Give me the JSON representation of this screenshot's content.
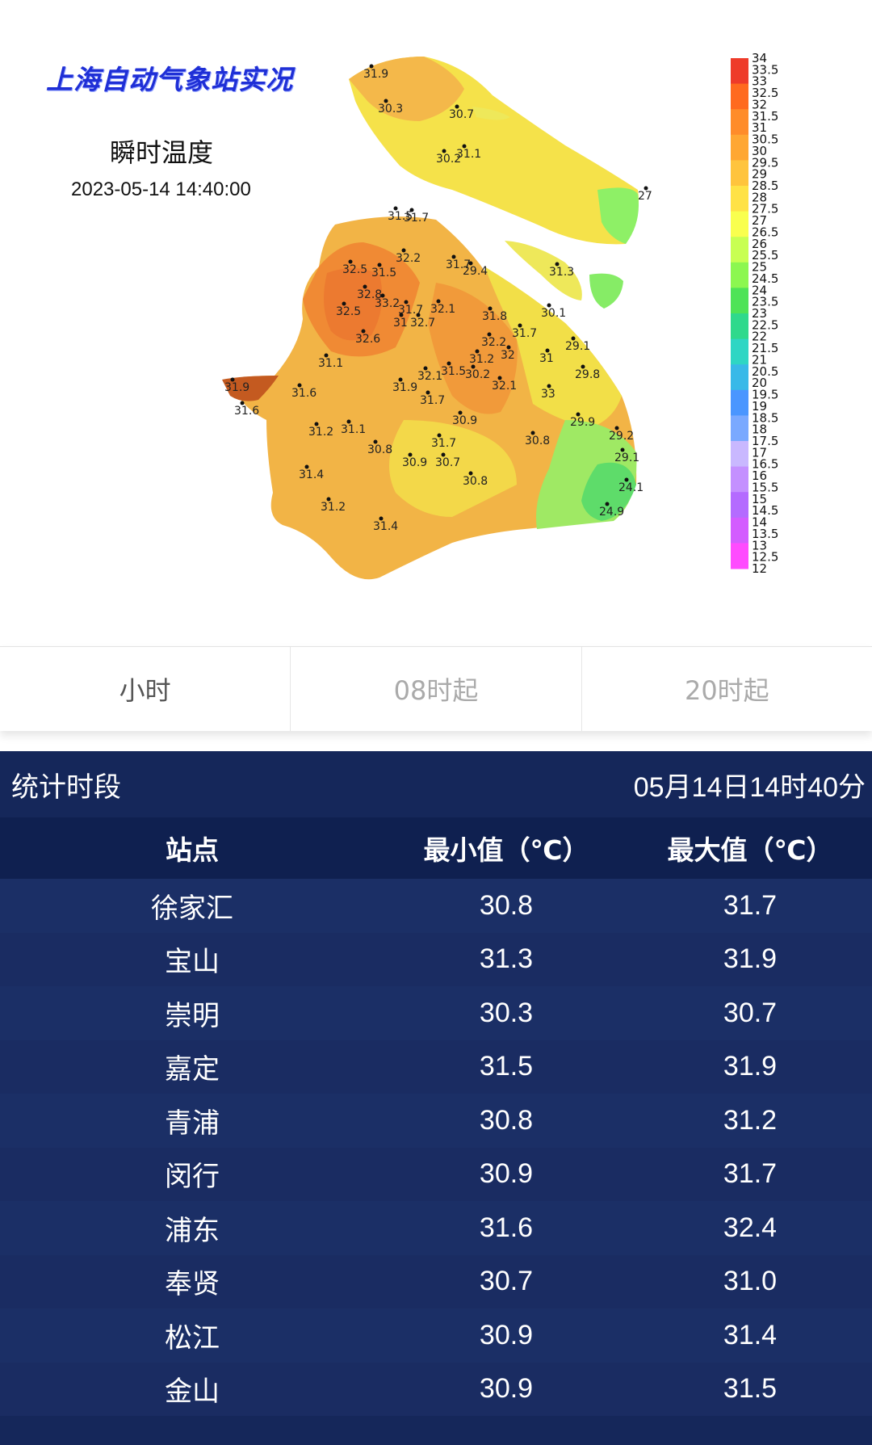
{
  "map": {
    "title": "上海自动气象站实况",
    "subtitle": "瞬时温度",
    "timestamp": "2023-05-14 14:40:00",
    "legend_labels": [
      "34",
      "33.5",
      "33",
      "32.5",
      "32",
      "31.5",
      "31",
      "30.5",
      "30",
      "29.5",
      "29",
      "28.5",
      "28",
      "27.5",
      "27",
      "26.5",
      "26",
      "25.5",
      "25",
      "24.5",
      "24",
      "23.5",
      "23",
      "22.5",
      "22",
      "21.5",
      "21",
      "20.5",
      "20",
      "19.5",
      "19",
      "18.5",
      "18",
      "17.5",
      "17",
      "16.5",
      "16",
      "15.5",
      "15",
      "14.5",
      "14",
      "13.5",
      "13",
      "12.5",
      "12"
    ],
    "legend_colors": [
      "#ee3b2a",
      "#ff6a1f",
      "#ff8c2a",
      "#ffa733",
      "#ffc43d",
      "#ffe246",
      "#f9ff4e",
      "#c8ff52",
      "#8cf750",
      "#4ee357",
      "#2fd98c",
      "#2ed6c4",
      "#38b9e8",
      "#4a96ff",
      "#7aa9ff",
      "#c9b8ff",
      "#c490ff",
      "#b46bff",
      "#d35cff",
      "#ff4bff"
    ],
    "stations": [
      {
        "v": "31.9"
      },
      {
        "v": "30.3"
      },
      {
        "v": "30.7"
      },
      {
        "v": "30.2"
      },
      {
        "v": "31.1"
      },
      {
        "v": "27"
      },
      {
        "v": "31.5"
      },
      {
        "v": "31.7"
      },
      {
        "v": "32.5"
      },
      {
        "v": "31.5"
      },
      {
        "v": "32.2"
      },
      {
        "v": "31.7"
      },
      {
        "v": "29.4"
      },
      {
        "v": "31.3"
      },
      {
        "v": "32.8"
      },
      {
        "v": "33.2"
      },
      {
        "v": "31.7"
      },
      {
        "v": "32.1"
      },
      {
        "v": "32.5"
      },
      {
        "v": "31"
      },
      {
        "v": "32.7"
      },
      {
        "v": "31.8"
      },
      {
        "v": "30.1"
      },
      {
        "v": "32.6"
      },
      {
        "v": "32.2"
      },
      {
        "v": "31.7"
      },
      {
        "v": "31.1"
      },
      {
        "v": "31.2"
      },
      {
        "v": "32"
      },
      {
        "v": "29.1"
      },
      {
        "v": "31"
      },
      {
        "v": "31.9"
      },
      {
        "v": "31.6"
      },
      {
        "v": "31.9"
      },
      {
        "v": "32.1"
      },
      {
        "v": "31.5"
      },
      {
        "v": "30.2"
      },
      {
        "v": "32.1"
      },
      {
        "v": "29.8"
      },
      {
        "v": "33"
      },
      {
        "v": "31.6"
      },
      {
        "v": "31.7"
      },
      {
        "v": "30.9"
      },
      {
        "v": "29.9"
      },
      {
        "v": "31.2"
      },
      {
        "v": "31.1"
      },
      {
        "v": "31.7"
      },
      {
        "v": "30.8"
      },
      {
        "v": "29.2"
      },
      {
        "v": "30.8"
      },
      {
        "v": "30.9"
      },
      {
        "v": "30.7"
      },
      {
        "v": "29.1"
      },
      {
        "v": "31.4"
      },
      {
        "v": "30.8"
      },
      {
        "v": "24.1"
      },
      {
        "v": "31.2"
      },
      {
        "v": "24.9"
      },
      {
        "v": "31.4"
      }
    ]
  },
  "tabs": [
    {
      "label": "小时",
      "active": true
    },
    {
      "label": "08时起",
      "active": false
    },
    {
      "label": "20时起",
      "active": false
    }
  ],
  "stats": {
    "period_label": "统计时段",
    "period_value": "05月14日14时40分",
    "columns": [
      "站点",
      "最小值（℃）",
      "最大值（℃）"
    ],
    "rows": [
      {
        "station": "徐家汇",
        "min": "30.8",
        "max": "31.7"
      },
      {
        "station": "宝山",
        "min": "31.3",
        "max": "31.9"
      },
      {
        "station": "崇明",
        "min": "30.3",
        "max": "30.7"
      },
      {
        "station": "嘉定",
        "min": "31.5",
        "max": "31.9"
      },
      {
        "station": "青浦",
        "min": "30.8",
        "max": "31.2"
      },
      {
        "station": "闵行",
        "min": "30.9",
        "max": "31.7"
      },
      {
        "station": "浦东",
        "min": "31.6",
        "max": "32.4"
      },
      {
        "station": "奉贤",
        "min": "30.7",
        "max": "31.0"
      },
      {
        "station": "松江",
        "min": "30.9",
        "max": "31.4"
      },
      {
        "station": "金山",
        "min": "30.9",
        "max": "31.5"
      }
    ]
  }
}
